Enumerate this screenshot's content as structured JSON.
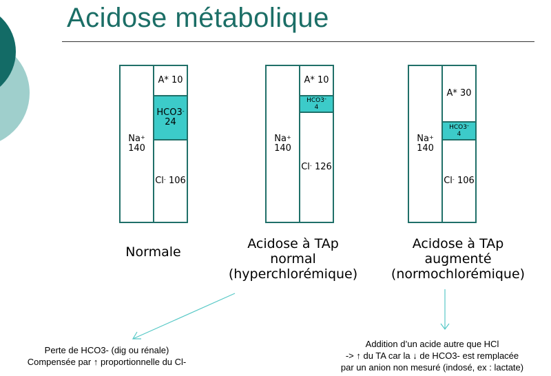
{
  "title": "Acidose métabolique",
  "colors": {
    "title": "#1b6e66",
    "border": "#1f6f68",
    "hco3_fill": "#3ccbc9",
    "arrow": "#56c8c6",
    "deco_dark": "#136b66",
    "deco_light": "#9fcfcc"
  },
  "panels": [
    {
      "na_label": "Na",
      "na_sup": "+",
      "na_value": "140",
      "a_label": "A* 10",
      "hco3_label": "HCO3",
      "hco3_sup": "-",
      "hco3_value": "24",
      "cl_label": "Cl",
      "cl_sup": "-",
      "cl_value": "106",
      "caption_lines": [
        "Normale"
      ]
    },
    {
      "na_label": "Na",
      "na_sup": "+",
      "na_value": "140",
      "a_label": "A* 10",
      "hco3_label": "HCO3",
      "hco3_sup": "-",
      "hco3_value": "4",
      "cl_label": "Cl",
      "cl_sup": "-",
      "cl_value": "126",
      "caption_lines": [
        "Acidose à TAp",
        "normal",
        "(hyperchlorémique)"
      ]
    },
    {
      "na_label": "Na",
      "na_sup": "+",
      "na_value": "140",
      "a_label": "A* 30",
      "hco3_label": "HCO3",
      "hco3_sup": "-",
      "hco3_value": "4",
      "cl_label": "Cl",
      "cl_sup": "-",
      "cl_value": "106",
      "caption_lines": [
        "Acidose à TAp",
        "augmenté",
        "(normochlorémique)"
      ]
    }
  ],
  "notes": {
    "left": [
      "Perte de HCO3- (dig ou rénale)",
      "Compensée par ↑ proportionnelle du Cl-"
    ],
    "right": [
      "Addition d’un acide autre que HCl",
      "-> ↑ du TA car la ↓ de HCO3- est remplacée",
      "par un anion non mesuré (indosé, ex : lactate)"
    ]
  }
}
